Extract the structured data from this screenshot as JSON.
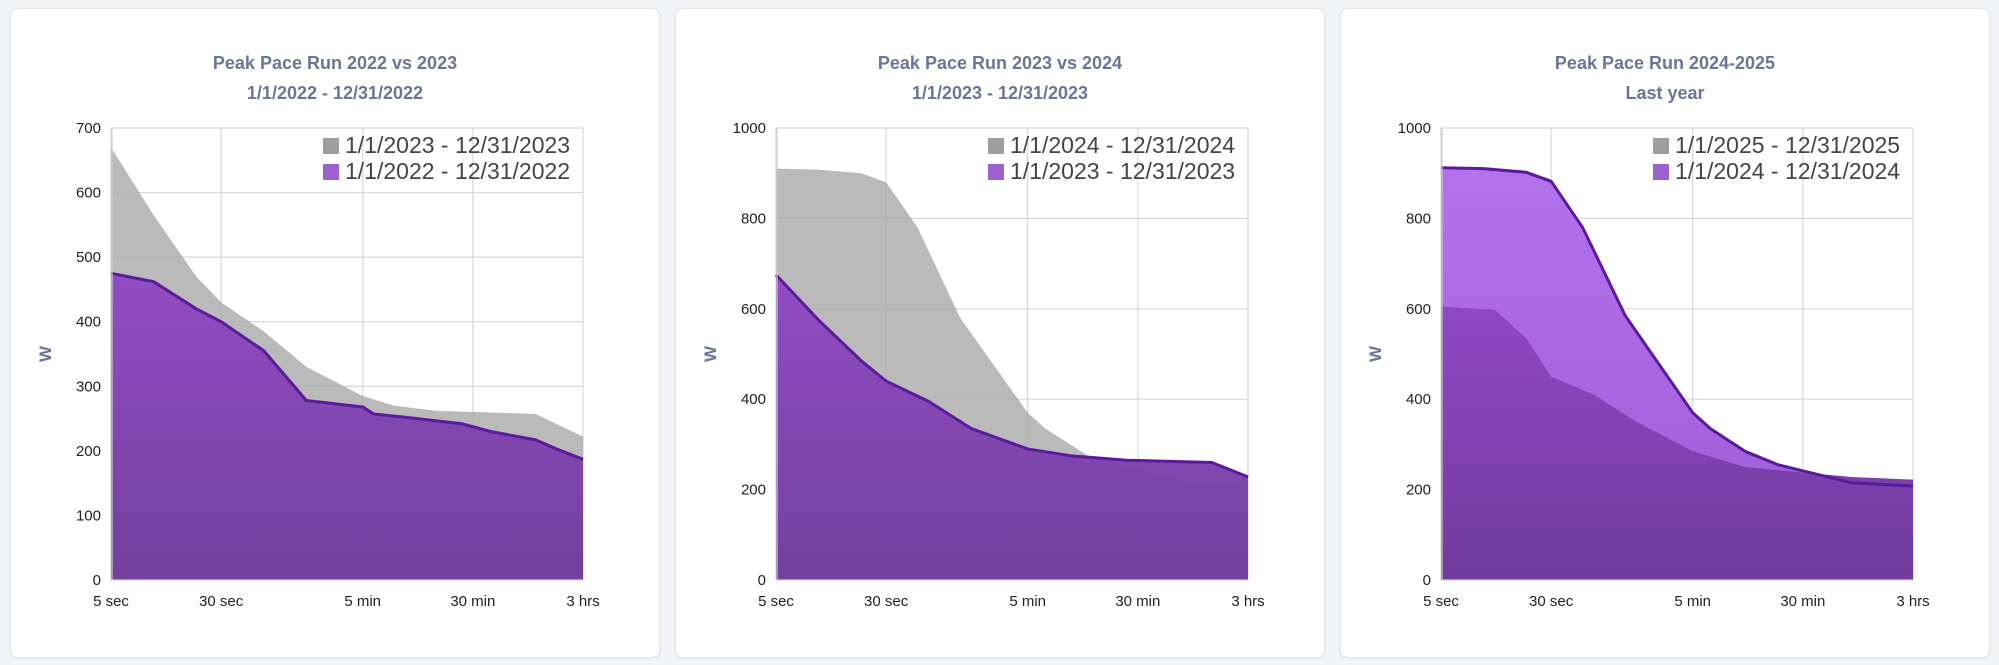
{
  "colors": {
    "current_fill": "#a6a6a6",
    "previous_fill": "#8d47c0",
    "previous_line": "#5a1a9c",
    "legend_current": "#9e9e9e",
    "legend_previous": "#9c62d2",
    "grid": "#d8d8d8",
    "title": "#6b7596"
  },
  "chart_data": [
    {
      "type": "area",
      "title": "Peak Pace Run 2022 vs 2023",
      "subtitle": "1/1/2022 - 12/31/2022",
      "ylabel": "W",
      "xlabel": "",
      "x_scale": "log",
      "ylim": [
        0,
        700
      ],
      "yticks": [
        0,
        100,
        200,
        300,
        400,
        500,
        600,
        700
      ],
      "x_ticks": [
        {
          "label": "5 sec",
          "seconds": 5
        },
        {
          "label": "30 sec",
          "seconds": 30
        },
        {
          "label": "5 min",
          "seconds": 300
        },
        {
          "label": "30 min",
          "seconds": 1800
        },
        {
          "label": "3 hrs",
          "seconds": 10800
        }
      ],
      "front_series": "previous",
      "legend": [
        "1/1/2023 - 12/31/2023",
        "1/1/2022 - 12/31/2022"
      ],
      "series": [
        {
          "name": "1/1/2023 - 12/31/2023",
          "role": "current",
          "x": [
            5,
            10,
            20,
            30,
            60,
            120,
            300,
            500,
            1000,
            2000,
            5000,
            10800
          ],
          "y": [
            670,
            565,
            470,
            430,
            385,
            330,
            285,
            270,
            262,
            260,
            257,
            222
          ]
        },
        {
          "name": "1/1/2022 - 12/31/2022",
          "role": "previous",
          "x": [
            5,
            10,
            20,
            30,
            60,
            120,
            300,
            360,
            600,
            1500,
            2400,
            5000,
            7000,
            10800
          ],
          "y": [
            475,
            462,
            420,
            400,
            355,
            278,
            268,
            257,
            252,
            242,
            230,
            217,
            203,
            187
          ]
        }
      ]
    },
    {
      "type": "area",
      "title": "Peak Pace Run 2023 vs 2024",
      "subtitle": "1/1/2023 - 12/31/2023",
      "ylabel": "W",
      "xlabel": "",
      "x_scale": "log",
      "ylim": [
        0,
        1000
      ],
      "yticks": [
        0,
        200,
        400,
        600,
        800,
        1000
      ],
      "x_ticks": [
        {
          "label": "5 sec",
          "seconds": 5
        },
        {
          "label": "30 sec",
          "seconds": 30
        },
        {
          "label": "5 min",
          "seconds": 300
        },
        {
          "label": "30 min",
          "seconds": 1800
        },
        {
          "label": "3 hrs",
          "seconds": 10800
        }
      ],
      "front_series": "previous",
      "legend": [
        "1/1/2024 - 12/31/2024",
        "1/1/2023 - 12/31/2023"
      ],
      "series": [
        {
          "name": "1/1/2024 - 12/31/2024",
          "role": "current",
          "x": [
            5,
            10,
            20,
            30,
            50,
            100,
            300,
            400,
            800,
            1500,
            4000,
            10800
          ],
          "y": [
            910,
            908,
            900,
            880,
            780,
            580,
            370,
            335,
            275,
            250,
            215,
            205
          ]
        },
        {
          "name": "1/1/2023 - 12/31/2023",
          "role": "previous",
          "x": [
            5,
            10,
            20,
            30,
            60,
            120,
            300,
            600,
            1500,
            6000,
            10800
          ],
          "y": [
            675,
            575,
            485,
            440,
            395,
            335,
            290,
            275,
            265,
            260,
            228
          ]
        }
      ]
    },
    {
      "type": "area",
      "title": "Peak Pace Run 2024-2025",
      "subtitle": "Last year",
      "ylabel": "W",
      "xlabel": "",
      "x_scale": "log",
      "ylim": [
        0,
        1000
      ],
      "yticks": [
        0,
        200,
        400,
        600,
        800,
        1000
      ],
      "x_ticks": [
        {
          "label": "5 sec",
          "seconds": 5
        },
        {
          "label": "30 sec",
          "seconds": 30
        },
        {
          "label": "5 min",
          "seconds": 300
        },
        {
          "label": "30 min",
          "seconds": 1800
        },
        {
          "label": "3 hrs",
          "seconds": 10800
        }
      ],
      "front_series": "current",
      "legend": [
        "1/1/2025 - 12/31/2025",
        "1/1/2024 - 12/31/2024"
      ],
      "series": [
        {
          "name": "1/1/2025 - 12/31/2025",
          "role": "current",
          "x": [
            5,
            12,
            20,
            30,
            60,
            120,
            300,
            700,
            1500,
            4000,
            10800
          ],
          "y": [
            605,
            598,
            535,
            450,
            410,
            350,
            285,
            250,
            240,
            228,
            222
          ]
        },
        {
          "name": "1/1/2024 - 12/31/2024",
          "role": "previous",
          "x": [
            5,
            10,
            20,
            30,
            50,
            100,
            300,
            400,
            700,
            1200,
            2000,
            4000,
            10800
          ],
          "y": [
            912,
            910,
            902,
            882,
            780,
            585,
            370,
            335,
            285,
            255,
            238,
            215,
            208
          ]
        }
      ]
    }
  ]
}
